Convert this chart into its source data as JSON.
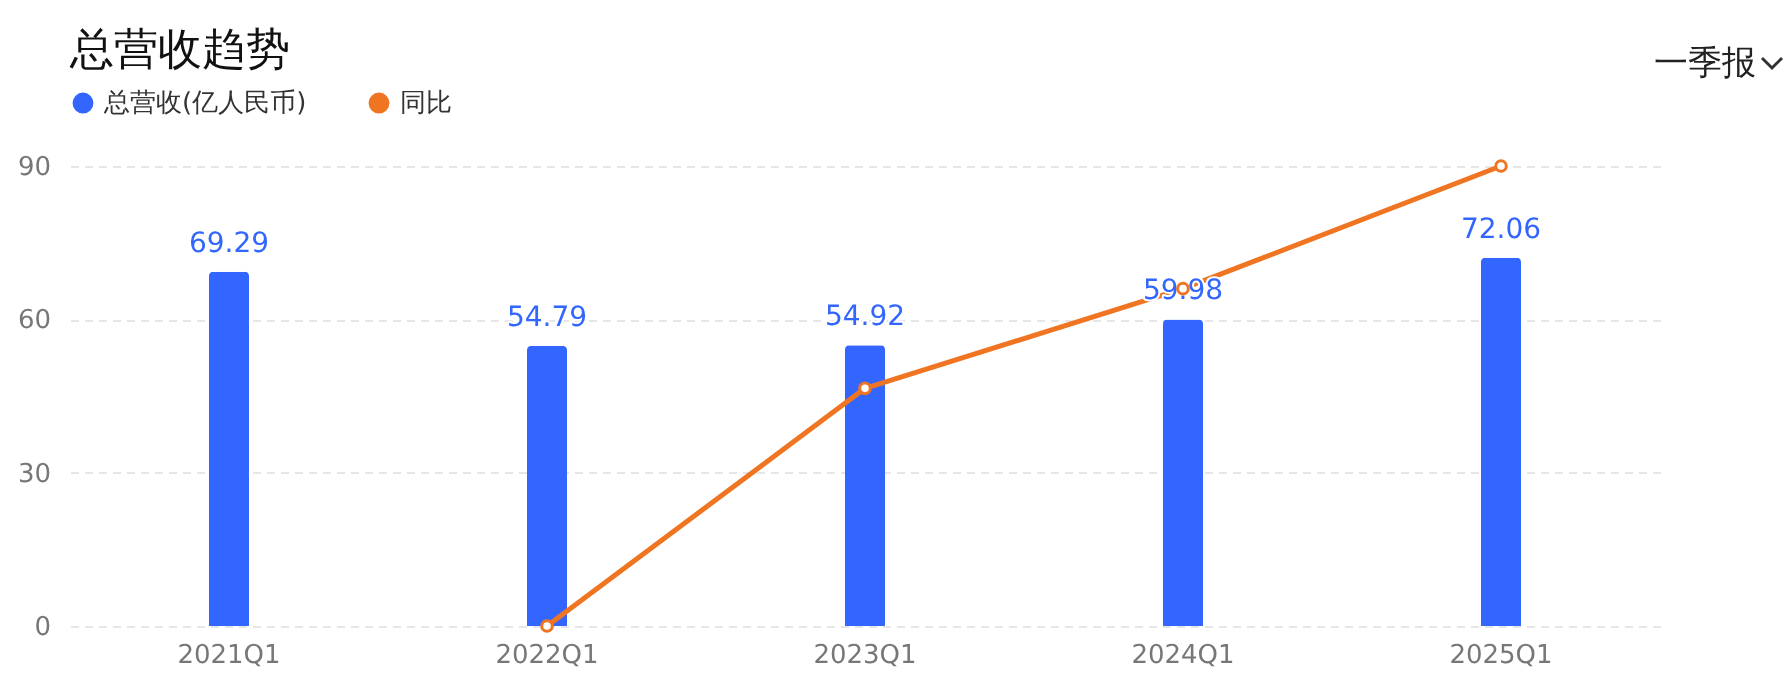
{
  "chart_data": {
    "type": "bar",
    "title": "总营收趋势",
    "annotations": [
      "一季报"
    ],
    "categories": [
      "2021Q1",
      "2022Q1",
      "2023Q1",
      "2024Q1",
      "2025Q1"
    ],
    "series": [
      {
        "name": "总营收(亿人民币)",
        "color": "#3366ff",
        "values": [
          69.29,
          54.79,
          54.92,
          59.98,
          72.06
        ],
        "value_labels": [
          "69.29",
          "54.79",
          "54.92",
          "59.98",
          "72.06"
        ]
      },
      {
        "name": "同比",
        "type": "line",
        "color": "#f07522",
        "values": [
          null,
          0,
          46.5,
          66,
          90
        ]
      }
    ],
    "ylim": [
      0,
      90
    ],
    "yticks": [
      0,
      30,
      60,
      90
    ],
    "grid": "y",
    "legend": "top left",
    "marker": "circle",
    "line_style": "solid"
  }
}
